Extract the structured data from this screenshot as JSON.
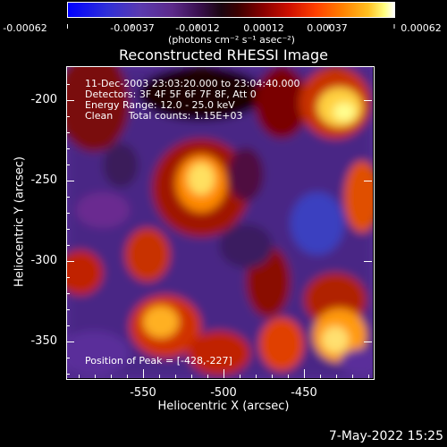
{
  "colorbar": {
    "ticks": [
      "-0.00062",
      "-0.00037",
      "-0.00012",
      "0.00012",
      "0.00037",
      "0.00062"
    ],
    "units": "(photons cm⁻² s⁻¹ asec⁻²)"
  },
  "title": "Reconstructed RHESSI Image",
  "overlay": {
    "time_range": "11-Dec-2003 23:03:20.000 to 23:04:40.000",
    "detectors": "Detectors: 3F 4F 5F 6F 7F 8F, Att 0",
    "energy": "Energy Range: 12.0 - 25.0 keV",
    "clean": "Clean     Total counts: 1.15E+03",
    "peak": "Position of Peak = [-428,-227]"
  },
  "axes": {
    "xlabel": "Heliocentric X (arcsec)",
    "ylabel": "Heliocentric Y (arcsec)",
    "xticks": [
      "-550",
      "-500",
      "-450"
    ],
    "yticks": [
      "-200",
      "-250",
      "-300",
      "-350"
    ]
  },
  "footer": {
    "timestamp": "7-May-2022 15:25"
  },
  "colors": {
    "background": "#000000",
    "text": "#ffffff"
  }
}
